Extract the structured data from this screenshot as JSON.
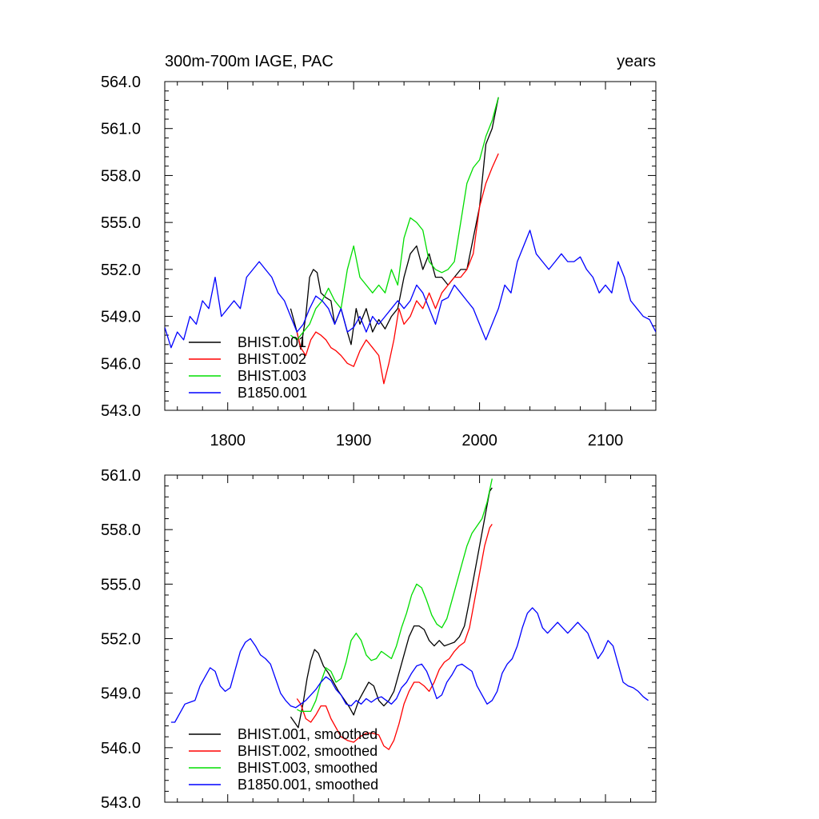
{
  "chart_data": [
    {
      "type": "line",
      "title": "300m-700m IAGE, PAC",
      "right_title": "years",
      "xlim": [
        1750,
        2140
      ],
      "ylim": [
        543,
        564
      ],
      "xticks": [
        1800,
        1900,
        2000,
        2100
      ],
      "xtick_labels": [
        "1800",
        "1900",
        "2000",
        "2100"
      ],
      "yticks": [
        543,
        546,
        549,
        552,
        555,
        558,
        561,
        564
      ],
      "ytick_labels": [
        "543.0",
        "546.0",
        "549.0",
        "552.0",
        "555.0",
        "558.0",
        "561.0",
        "564.0"
      ],
      "legend_position": "bottom-left",
      "series": [
        {
          "name": "BHIST.001",
          "color": "#000000",
          "x": [
            1850,
            1855,
            1858,
            1862,
            1865,
            1868,
            1871,
            1874,
            1878,
            1882,
            1885,
            1890,
            1895,
            1898,
            1902,
            1905,
            1910,
            1915,
            1920,
            1925,
            1930,
            1935,
            1940,
            1945,
            1950,
            1955,
            1960,
            1965,
            1970,
            1975,
            1980,
            1985,
            1990,
            1995,
            2000,
            2005,
            2010,
            2015
          ],
          "y": [
            549.5,
            548,
            546.9,
            549,
            551.5,
            552,
            551.8,
            550.5,
            550.2,
            550,
            548.5,
            549.5,
            548,
            547.2,
            549.5,
            548.5,
            549.5,
            548,
            548.8,
            548.2,
            549,
            549.5,
            551.5,
            553,
            553.5,
            552,
            553,
            551.5,
            551.5,
            551,
            551.5,
            552,
            552,
            554,
            556,
            560,
            561,
            563
          ]
        },
        {
          "name": "BHIST.002",
          "color": "#ff0000",
          "x": [
            1855,
            1858,
            1862,
            1866,
            1870,
            1874,
            1878,
            1882,
            1886,
            1890,
            1895,
            1900,
            1905,
            1910,
            1915,
            1920,
            1924,
            1928,
            1932,
            1936,
            1940,
            1945,
            1950,
            1955,
            1960,
            1965,
            1970,
            1975,
            1980,
            1985,
            1990,
            1995,
            2000,
            2005,
            2010,
            2015
          ],
          "y": [
            548,
            547,
            546.5,
            547.5,
            548,
            547.8,
            547.5,
            547,
            546.8,
            546.5,
            546,
            545.8,
            546.8,
            547.5,
            547,
            546.5,
            544.7,
            546,
            547.5,
            549.5,
            548.5,
            549,
            550,
            549.5,
            550.5,
            549.5,
            550.5,
            551,
            551.5,
            551.5,
            552,
            553,
            556,
            557.5,
            558.5,
            559.4
          ]
        },
        {
          "name": "BHIST.003",
          "color": "#00dd00",
          "x": [
            1850,
            1855,
            1860,
            1865,
            1870,
            1875,
            1880,
            1885,
            1890,
            1895,
            1900,
            1905,
            1910,
            1915,
            1920,
            1925,
            1930,
            1935,
            1940,
            1945,
            1950,
            1955,
            1960,
            1965,
            1970,
            1975,
            1980,
            1985,
            1990,
            1995,
            2000,
            2005,
            2010,
            2015
          ],
          "y": [
            547.8,
            547.5,
            548,
            548.5,
            549.5,
            550,
            550.8,
            550,
            549.5,
            552,
            553.5,
            551.5,
            551,
            550.5,
            551,
            550.5,
            552,
            551,
            554,
            555.3,
            555,
            554.5,
            552.5,
            552,
            551.8,
            552,
            552.5,
            555,
            557.5,
            558.5,
            559,
            560.5,
            561.5,
            563
          ]
        },
        {
          "name": "B1850.001",
          "color": "#0000ff",
          "x": [
            1750,
            1755,
            1760,
            1765,
            1770,
            1775,
            1780,
            1785,
            1790,
            1795,
            1800,
            1805,
            1810,
            1815,
            1820,
            1825,
            1830,
            1835,
            1840,
            1845,
            1850,
            1855,
            1860,
            1865,
            1870,
            1875,
            1880,
            1885,
            1890,
            1895,
            1900,
            1905,
            1910,
            1915,
            1920,
            1925,
            1930,
            1935,
            1940,
            1945,
            1950,
            1955,
            1960,
            1965,
            1970,
            1975,
            1980,
            1985,
            1990,
            1995,
            2000,
            2005,
            2010,
            2015,
            2020,
            2025,
            2030,
            2035,
            2040,
            2045,
            2050,
            2055,
            2060,
            2065,
            2070,
            2075,
            2080,
            2085,
            2090,
            2095,
            2100,
            2105,
            2110,
            2115,
            2120,
            2125,
            2130,
            2135,
            2140
          ],
          "y": [
            548.3,
            547,
            548,
            547.5,
            549,
            548.5,
            550,
            549.5,
            551.5,
            549,
            549.5,
            550,
            549.5,
            551.5,
            552,
            552.5,
            552,
            551.5,
            550.5,
            550,
            549,
            548,
            548.5,
            549.5,
            550.3,
            550,
            549.5,
            548.5,
            549.5,
            548,
            548.3,
            549,
            548,
            549,
            548.5,
            549,
            549.5,
            550,
            549.5,
            550,
            551,
            550.5,
            549.5,
            548.5,
            550,
            550.2,
            551,
            550.5,
            550,
            549.5,
            548.5,
            547.5,
            548.5,
            549.5,
            551,
            550.5,
            552.5,
            553.5,
            554.5,
            553,
            552.5,
            552,
            552.5,
            553,
            552.5,
            552.5,
            552.8,
            552,
            551.5,
            550.5,
            551,
            550.5,
            552.5,
            551.5,
            550,
            549.5,
            549,
            548.8,
            548
          ]
        }
      ]
    },
    {
      "type": "line",
      "xlim": [
        1750,
        2140
      ],
      "ylim": [
        543,
        561
      ],
      "xticks": [
        1800,
        1900,
        2000,
        2100
      ],
      "yticks": [
        543,
        546,
        549,
        552,
        555,
        558,
        561
      ],
      "ytick_labels": [
        "543.0",
        "546.0",
        "549.0",
        "552.0",
        "555.0",
        "558.0",
        "561.0"
      ],
      "legend_position": "bottom-left",
      "series": [
        {
          "name": "BHIST.001, smoothed",
          "color": "#000000",
          "x": [
            1850,
            1853,
            1856,
            1860,
            1863,
            1866,
            1869,
            1872,
            1876,
            1880,
            1884,
            1888,
            1892,
            1896,
            1900,
            1904,
            1908,
            1912,
            1916,
            1920,
            1924,
            1928,
            1932,
            1936,
            1940,
            1944,
            1948,
            1952,
            1956,
            1960,
            1964,
            1968,
            1972,
            1976,
            1980,
            1984,
            1988,
            1992,
            1996,
            2000,
            2004,
            2008,
            2010
          ],
          "y": [
            547.7,
            547.4,
            547.1,
            548.5,
            549.8,
            550.8,
            551.4,
            551.2,
            550.5,
            550.1,
            549.6,
            549.1,
            548.7,
            548.3,
            547.8,
            548.6,
            549.1,
            549.6,
            549.4,
            548.6,
            548.3,
            548.6,
            549.1,
            550.1,
            551.1,
            552.1,
            552.7,
            552.7,
            552.5,
            551.9,
            551.6,
            551.9,
            551.6,
            551.7,
            551.8,
            552.1,
            552.7,
            554.1,
            555.6,
            557.1,
            558.6,
            560.1,
            560.3
          ]
        },
        {
          "name": "BHIST.002, smoothed",
          "color": "#ff0000",
          "x": [
            1855,
            1858,
            1862,
            1866,
            1870,
            1874,
            1878,
            1882,
            1886,
            1890,
            1895,
            1900,
            1905,
            1910,
            1915,
            1920,
            1924,
            1928,
            1932,
            1936,
            1940,
            1944,
            1948,
            1952,
            1956,
            1960,
            1964,
            1968,
            1972,
            1976,
            1980,
            1984,
            1988,
            1992,
            1996,
            2000,
            2004,
            2008,
            2010
          ],
          "y": [
            548.7,
            548.4,
            547.6,
            547.4,
            547.8,
            548.3,
            548.3,
            547.6,
            547.1,
            546.6,
            546.4,
            546.3,
            546.6,
            546.8,
            546.8,
            546.7,
            546.1,
            545.9,
            546.4,
            547.3,
            548.4,
            549.1,
            549.6,
            549.6,
            549.4,
            549.1,
            549.6,
            550.3,
            550.7,
            550.9,
            551.3,
            551.6,
            551.8,
            552.6,
            554.1,
            555.6,
            557.1,
            558.1,
            558.3
          ]
        },
        {
          "name": "BHIST.003, smoothed",
          "color": "#00dd00",
          "x": [
            1855,
            1858,
            1862,
            1866,
            1870,
            1874,
            1878,
            1882,
            1886,
            1890,
            1894,
            1898,
            1902,
            1906,
            1910,
            1914,
            1918,
            1922,
            1926,
            1930,
            1934,
            1938,
            1942,
            1946,
            1950,
            1954,
            1958,
            1962,
            1966,
            1970,
            1974,
            1978,
            1982,
            1986,
            1990,
            1994,
            1998,
            2002,
            2006,
            2010
          ],
          "y": [
            548.1,
            548,
            548,
            548,
            548.6,
            549.6,
            550.4,
            550.2,
            549.6,
            549.8,
            550.7,
            551.9,
            552.3,
            551.9,
            551.1,
            550.8,
            550.9,
            551.3,
            551.1,
            550.9,
            551.6,
            552.6,
            553.4,
            554.4,
            555,
            554.8,
            554.1,
            553.3,
            552.8,
            552.6,
            553.1,
            554.1,
            555.1,
            556.1,
            557.1,
            557.8,
            558.2,
            558.6,
            559.5,
            560.8
          ]
        },
        {
          "name": "B1850.001, smoothed",
          "color": "#0000ff",
          "x": [
            1755,
            1758,
            1762,
            1766,
            1770,
            1774,
            1778,
            1782,
            1786,
            1790,
            1794,
            1798,
            1802,
            1806,
            1810,
            1814,
            1818,
            1822,
            1826,
            1830,
            1834,
            1838,
            1842,
            1846,
            1850,
            1854,
            1858,
            1862,
            1866,
            1870,
            1874,
            1878,
            1882,
            1886,
            1890,
            1894,
            1898,
            1902,
            1906,
            1910,
            1914,
            1918,
            1922,
            1926,
            1930,
            1934,
            1938,
            1942,
            1946,
            1950,
            1954,
            1958,
            1962,
            1966,
            1970,
            1974,
            1978,
            1982,
            1986,
            1990,
            1994,
            1998,
            2002,
            2006,
            2010,
            2014,
            2018,
            2022,
            2026,
            2030,
            2034,
            2038,
            2042,
            2046,
            2050,
            2054,
            2058,
            2062,
            2066,
            2070,
            2074,
            2078,
            2082,
            2086,
            2090,
            2094,
            2098,
            2102,
            2106,
            2110,
            2114,
            2118,
            2122,
            2126,
            2130,
            2134
          ],
          "y": [
            547.4,
            547.4,
            547.9,
            548.4,
            548.5,
            548.6,
            549.4,
            549.9,
            550.4,
            550.2,
            549.4,
            549.1,
            549.3,
            550.3,
            551.3,
            551.8,
            552,
            551.6,
            551.1,
            550.9,
            550.6,
            549.8,
            549,
            548.6,
            548.3,
            548.2,
            548.4,
            548.6,
            548.9,
            549.2,
            549.6,
            549.9,
            549.7,
            549.2,
            548.9,
            548.4,
            548.3,
            548.6,
            548.4,
            548.7,
            548.5,
            548.7,
            548.8,
            548.6,
            548.4,
            548.7,
            549.3,
            549.6,
            550.1,
            550.5,
            550.6,
            550.2,
            549.5,
            548.7,
            548.9,
            549.6,
            550,
            550.5,
            550.6,
            550.4,
            550.2,
            549.4,
            548.9,
            548.4,
            548.6,
            549.1,
            550.1,
            550.6,
            550.9,
            551.6,
            552.6,
            553.4,
            553.7,
            553.4,
            552.6,
            552.3,
            552.6,
            552.9,
            552.6,
            552.3,
            552.6,
            552.9,
            552.6,
            552.3,
            551.6,
            550.9,
            551.3,
            551.9,
            551.6,
            550.6,
            549.6,
            549.4,
            549.3,
            549.1,
            548.8,
            548.6
          ]
        }
      ]
    }
  ]
}
